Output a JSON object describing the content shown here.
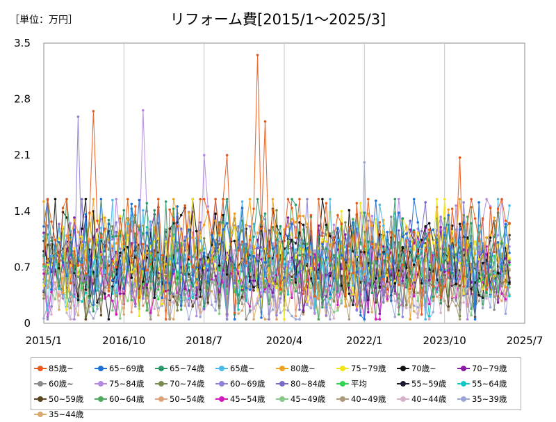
{
  "chart_data": {
    "type": "line",
    "unit_label": "［単位：万円］",
    "title": "リフォーム費[2015/1～2025/3]",
    "xlabel": "",
    "ylabel": "",
    "x_ticks": [
      "2015/1",
      "2016/10",
      "2018/7",
      "2020/4",
      "2022/1",
      "2023/10",
      "2025/7"
    ],
    "y_ticks": [
      "0",
      "0.7",
      "1.4",
      "2.1",
      "2.8",
      "3.5"
    ],
    "ylim": [
      0,
      3.5
    ],
    "x_range": [
      "2015/1",
      "2025/7"
    ],
    "grid": "vertical",
    "legend_position": "bottom",
    "x_start_month": "2015/1",
    "months": 123,
    "peaks": [
      {
        "series": "85歳~",
        "x": "2019/9",
        "y": 3.35
      },
      {
        "series": "85歳~",
        "x": "2019/11",
        "y": 2.52
      },
      {
        "series": "85歳~",
        "x": "2016/2",
        "y": 2.65
      },
      {
        "series": "60~69歳",
        "x": "2015/10",
        "y": 2.58
      },
      {
        "series": "75~84歳",
        "x": "2017/3",
        "y": 2.66
      },
      {
        "series": "85歳~",
        "x": "2024/2",
        "y": 2.07
      },
      {
        "series": "75~84歳",
        "x": "2018/7",
        "y": 2.1
      },
      {
        "series": "85歳~",
        "x": "2019/1",
        "y": 2.1
      },
      {
        "series": "35~39歳",
        "x": "2022/1",
        "y": 2.01
      }
    ],
    "series": [
      {
        "name": "85歳~",
        "color": "#ea5a1a",
        "base": 1.0,
        "amp": 0.42
      },
      {
        "name": "65~69歳",
        "color": "#1f6fd6",
        "base": 0.95,
        "amp": 0.38
      },
      {
        "name": "65~74歳",
        "color": "#2a9a6a",
        "base": 0.9,
        "amp": 0.34
      },
      {
        "name": "65歳~",
        "color": "#4cb8ea",
        "base": 0.85,
        "amp": 0.3
      },
      {
        "name": "80歳~",
        "color": "#f0a21e",
        "base": 0.95,
        "amp": 0.34
      },
      {
        "name": "75~79歳",
        "color": "#f2e61a",
        "base": 0.9,
        "amp": 0.34
      },
      {
        "name": "70歳~",
        "color": "#111111",
        "base": 0.9,
        "amp": 0.32
      },
      {
        "name": "70~79歳",
        "color": "#8a1aa6",
        "base": 0.75,
        "amp": 0.28
      },
      {
        "name": "60歳~",
        "color": "#8c8c8c",
        "base": 0.7,
        "amp": 0.26
      },
      {
        "name": "75~84歳",
        "color": "#b48ae0",
        "base": 0.85,
        "amp": 0.36
      },
      {
        "name": "70~74歳",
        "color": "#7a8a4e",
        "base": 0.8,
        "amp": 0.3
      },
      {
        "name": "60~69歳",
        "color": "#8e82d6",
        "base": 0.75,
        "amp": 0.34
      },
      {
        "name": "80~84歳",
        "color": "#7a6ac8",
        "base": 0.85,
        "amp": 0.32
      },
      {
        "name": "平均",
        "color": "#2ed654",
        "base": 0.7,
        "amp": 0.18
      },
      {
        "name": "55~59歳",
        "color": "#1a1a2e",
        "base": 0.7,
        "amp": 0.26
      },
      {
        "name": "55~64歳",
        "color": "#16c6c6",
        "base": 0.65,
        "amp": 0.24
      },
      {
        "name": "50~59歳",
        "color": "#5a4420",
        "base": 0.6,
        "amp": 0.24
      },
      {
        "name": "60~64歳",
        "color": "#4caa5e",
        "base": 0.7,
        "amp": 0.28
      },
      {
        "name": "50~54歳",
        "color": "#e0a078",
        "base": 0.55,
        "amp": 0.22
      },
      {
        "name": "45~54歳",
        "color": "#d21ac0",
        "base": 0.5,
        "amp": 0.2
      },
      {
        "name": "45~49歳",
        "color": "#86c886",
        "base": 0.5,
        "amp": 0.2
      },
      {
        "name": "40~49歳",
        "color": "#a89a7a",
        "base": 0.45,
        "amp": 0.2
      },
      {
        "name": "40~44歳",
        "color": "#d6b0cc",
        "base": 0.4,
        "amp": 0.2
      },
      {
        "name": "35~39歳",
        "color": "#9aa6d6",
        "base": 0.35,
        "amp": 0.22
      },
      {
        "name": "35~44歳",
        "color": "#d8aa70",
        "base": 0.4,
        "amp": 0.2
      }
    ]
  }
}
